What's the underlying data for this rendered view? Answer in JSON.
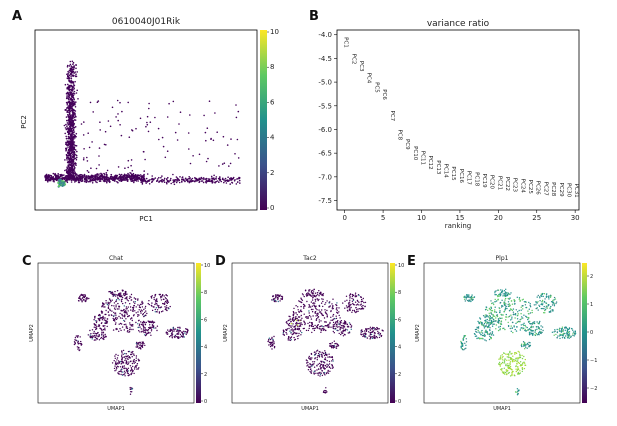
{
  "panels": {
    "A": {
      "letter": "A",
      "title": "0610040J01Rik",
      "xlabel": "PC1",
      "ylabel": "PC2",
      "colorbar_ticks": [
        "10",
        "8",
        "6",
        "4",
        "2",
        "0"
      ]
    },
    "B": {
      "letter": "B",
      "title": "variance ratio",
      "xlabel": "ranking",
      "yticks": [
        "-4.0",
        "-4.5",
        "-5.0",
        "-5.5",
        "-6.0",
        "-6.5",
        "-7.0",
        "-7.5"
      ],
      "xticks": [
        "0",
        "5",
        "10",
        "15",
        "20",
        "25",
        "30"
      ]
    },
    "C": {
      "letter": "C",
      "title": "Chat",
      "xlabel": "UMAP1",
      "ylabel": "UMAP2",
      "colorbar_ticks": [
        "10",
        "8",
        "6",
        "4",
        "2",
        "0"
      ]
    },
    "D": {
      "letter": "D",
      "title": "Tac2",
      "xlabel": "UMAP1",
      "ylabel": "UMAP2",
      "colorbar_ticks": [
        "10",
        "8",
        "6",
        "4",
        "2",
        "0"
      ]
    },
    "E": {
      "letter": "E",
      "title": "Plp1",
      "xlabel": "UMAP1",
      "ylabel": "UMAP2",
      "colorbar_ticks": [
        "2",
        "1",
        "0",
        "−1",
        "−2"
      ]
    }
  },
  "chart_data": [
    {
      "type": "scatter",
      "panel": "A",
      "title": "0610040J01Rik",
      "xlabel": "PC1",
      "ylabel": "PC2",
      "colorbar": {
        "min": 0,
        "max": 10,
        "colormap": "viridis"
      }
    },
    {
      "type": "scatter",
      "panel": "B",
      "title": "variance ratio",
      "xlabel": "ranking",
      "ylabel": "",
      "xlim": [
        -1,
        30.5
      ],
      "ylim": [
        -7.7,
        -3.9
      ],
      "labels": [
        "PC1",
        "PC2",
        "PC3",
        "PC4",
        "PC5",
        "PC6",
        "PC7",
        "PC8",
        "PC9",
        "PC10",
        "PC11",
        "PC12",
        "PC13",
        "PC14",
        "PC15",
        "PC16",
        "PC17",
        "PC18",
        "PC19",
        "PC20",
        "PC21",
        "PC22",
        "PC23",
        "PC24",
        "PC25",
        "PC26",
        "PC27",
        "PC28",
        "PC29",
        "PC30",
        "PC31"
      ],
      "x": [
        0,
        1,
        2,
        3,
        4,
        5,
        6,
        7,
        8,
        9,
        10,
        11,
        12,
        13,
        14,
        15,
        16,
        17,
        18,
        19,
        20,
        21,
        22,
        23,
        24,
        25,
        26,
        27,
        28,
        29,
        30
      ],
      "y": [
        -4.05,
        -4.4,
        -4.55,
        -4.8,
        -5.0,
        -5.15,
        -5.6,
        -6.0,
        -6.2,
        -6.35,
        -6.45,
        -6.55,
        -6.65,
        -6.72,
        -6.78,
        -6.83,
        -6.87,
        -6.9,
        -6.93,
        -6.96,
        -6.98,
        -7.0,
        -7.02,
        -7.04,
        -7.06,
        -7.08,
        -7.1,
        -7.11,
        -7.12,
        -7.13,
        -7.14
      ]
    },
    {
      "type": "scatter",
      "panel": "C",
      "title": "Chat",
      "xlabel": "UMAP1",
      "ylabel": "UMAP2",
      "colorbar": {
        "min": 0,
        "max": 10,
        "colormap": "viridis"
      }
    },
    {
      "type": "scatter",
      "panel": "D",
      "title": "Tac2",
      "xlabel": "UMAP1",
      "ylabel": "UMAP2",
      "colorbar": {
        "min": 0,
        "max": 10,
        "colormap": "viridis"
      }
    },
    {
      "type": "scatter",
      "panel": "E",
      "title": "Plp1",
      "xlabel": "UMAP1",
      "ylabel": "UMAP2",
      "colorbar": {
        "min": -2.5,
        "max": 2.5,
        "colormap": "viridis"
      }
    }
  ]
}
